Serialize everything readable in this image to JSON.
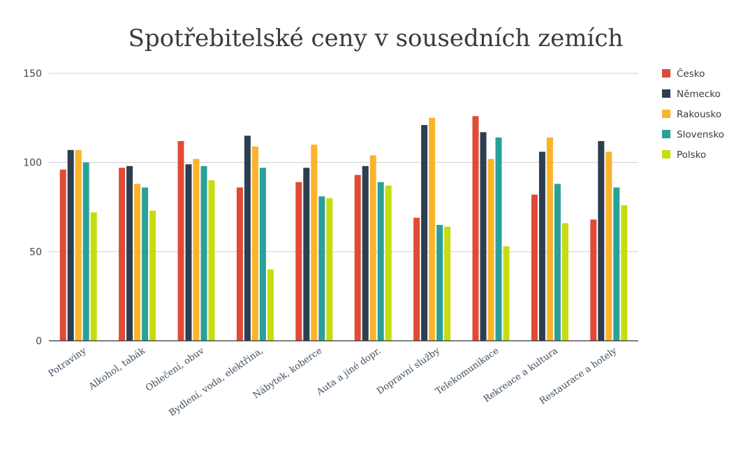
{
  "chart_data": {
    "type": "bar",
    "title": "Spotřebitelské ceny v sousedních zemích",
    "xlabel": "",
    "ylabel": "",
    "ylim": [
      0,
      150
    ],
    "yticks": [
      0,
      50,
      100,
      150
    ],
    "grid": true,
    "legend_position": "right",
    "categories": [
      "Potraviny",
      "Alkohol, tabák",
      "Oblečení, obuv",
      "Bydlení, voda, elektřina,",
      "Nábytek, koberce",
      "Auta a jiné dopr.",
      "Dopravní služby",
      "Telekomunikace",
      "Rekreace a kultura",
      "Restaurace a hotely"
    ],
    "series": [
      {
        "name": "Česko",
        "color": "#e04a36",
        "values": [
          96,
          97,
          112,
          86,
          89,
          93,
          69,
          126,
          82,
          68
        ]
      },
      {
        "name": "Německo",
        "color": "#2c3e50",
        "values": [
          107,
          98,
          99,
          115,
          97,
          98,
          121,
          117,
          106,
          112
        ]
      },
      {
        "name": "Rakousko",
        "color": "#fbb32b",
        "values": [
          107,
          88,
          102,
          109,
          110,
          104,
          125,
          102,
          114,
          106
        ]
      },
      {
        "name": "Slovensko",
        "color": "#2aa198",
        "values": [
          100,
          86,
          98,
          97,
          81,
          89,
          65,
          114,
          88,
          86
        ]
      },
      {
        "name": "Polsko",
        "color": "#c7dc0f",
        "values": [
          72,
          73,
          90,
          40,
          80,
          87,
          64,
          53,
          66,
          76
        ]
      }
    ]
  }
}
